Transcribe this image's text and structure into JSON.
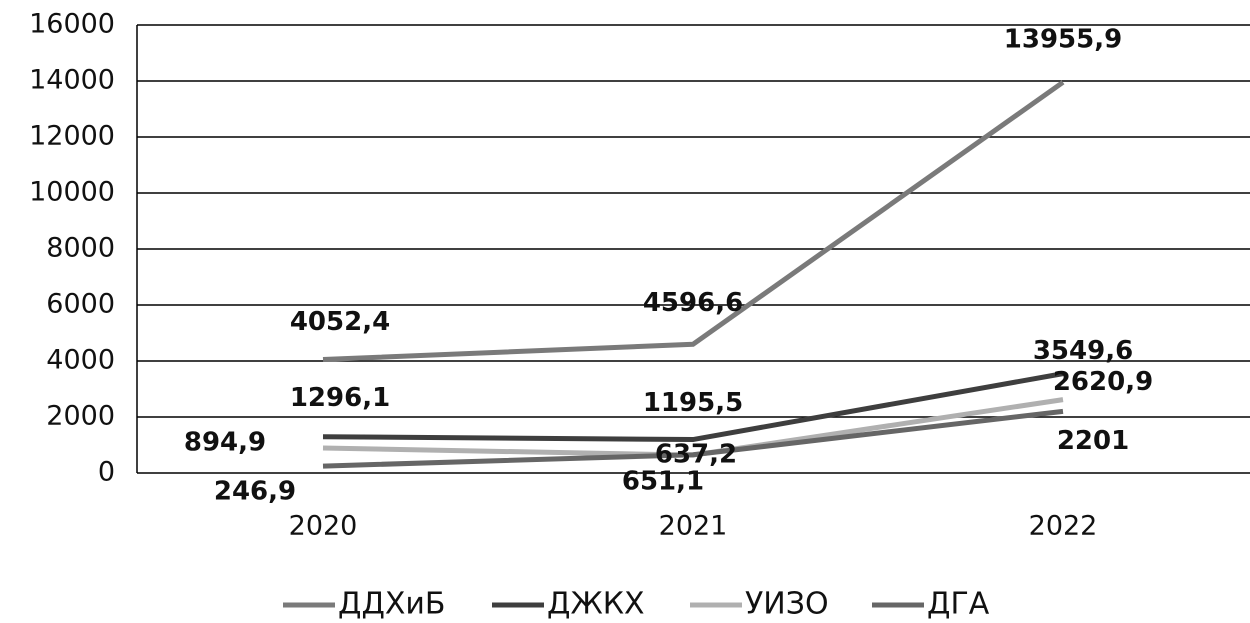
{
  "chart_data": {
    "type": "line",
    "categories": [
      "2020",
      "2021",
      "2022"
    ],
    "series": [
      {
        "name": "ДДХиБ",
        "color": "#7a7a7a",
        "values": [
          4052.4,
          4596.6,
          13955.9
        ],
        "value_labels": [
          "4052,4",
          "4596,6",
          "13955,9"
        ]
      },
      {
        "name": "ДЖКХ",
        "color": "#3e3e3e",
        "values": [
          1296.1,
          1195.5,
          3549.6
        ],
        "value_labels": [
          "1296,1",
          "1195,5",
          "3549,6"
        ]
      },
      {
        "name": "УИЗО",
        "color": "#b0b0b0",
        "values": [
          894.9,
          637.2,
          2620.9
        ],
        "value_labels": [
          "894,9",
          "637,2",
          "2620,9"
        ]
      },
      {
        "name": "ДГА",
        "color": "#666666",
        "values": [
          246.9,
          651.1,
          2201
        ],
        "value_labels": [
          "246,9",
          "651,1",
          "2201"
        ]
      }
    ],
    "ylim": [
      0,
      16000
    ],
    "yticks": [
      0,
      2000,
      4000,
      6000,
      8000,
      10000,
      12000,
      14000,
      16000
    ],
    "grid": true,
    "legend": "bottom"
  }
}
